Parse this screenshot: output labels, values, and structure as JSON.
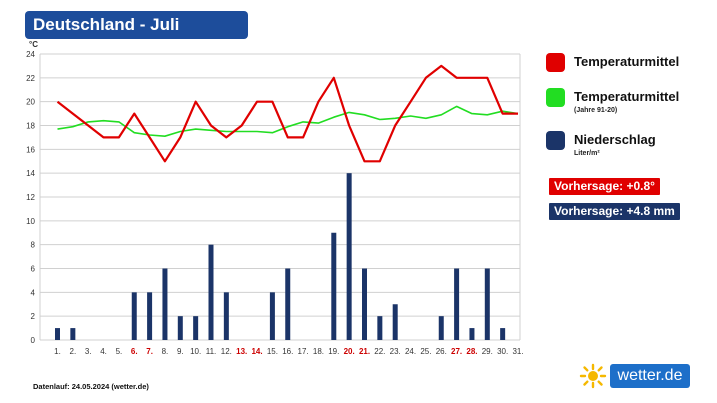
{
  "header": {
    "title": "Deutschland - Juli",
    "unit": "°C"
  },
  "legend": {
    "temp": {
      "label": "Temperaturmittel",
      "color": "#e00000"
    },
    "normal": {
      "label": "Temperaturmittel",
      "sublabel": "(Jahre 91-20)",
      "color": "#22dd22"
    },
    "precip": {
      "label": "Niederschlag",
      "sublabel": "Liter/m²",
      "color": "#1b3468"
    }
  },
  "badges": {
    "temp_forecast": "Vorhersage: +0.8°",
    "precip_forecast": "Vorhersage: +4.8 mm"
  },
  "footer": {
    "text": "Datenlauf: 24.05.2024 (wetter.de)"
  },
  "logo": {
    "text": "wetter.de",
    "icon": "sun-icon"
  },
  "chart_data": {
    "type": "line+bar",
    "ylim": [
      0,
      24
    ],
    "yticks": [
      0,
      2,
      4,
      6,
      8,
      10,
      12,
      14,
      16,
      18,
      20,
      22,
      24
    ],
    "categories": [
      "1.",
      "2.",
      "3.",
      "4.",
      "5.",
      "6.",
      "7.",
      "8.",
      "9.",
      "10.",
      "11.",
      "12.",
      "13.",
      "14.",
      "15.",
      "16.",
      "17.",
      "18.",
      "19.",
      "20.",
      "21.",
      "22.",
      "23.",
      "24.",
      "25.",
      "26.",
      "27.",
      "28.",
      "29.",
      "30.",
      "31."
    ],
    "weekend_days": [
      6,
      7,
      13,
      14,
      20,
      21,
      27,
      28
    ],
    "series": [
      {
        "name": "Temperaturmittel",
        "type": "line",
        "color": "#e00000",
        "values": [
          20,
          19,
          18,
          17,
          17,
          19,
          17,
          15,
          17,
          20,
          18,
          17,
          18,
          20,
          20,
          17,
          17,
          20,
          22,
          18,
          15,
          15,
          18,
          20,
          22,
          23,
          22,
          22,
          22,
          19,
          19
        ]
      },
      {
        "name": "Temperaturmittel (Jahre 91-20)",
        "type": "line",
        "color": "#22dd22",
        "values": [
          17.7,
          17.9,
          18.3,
          18.4,
          18.3,
          17.4,
          17.2,
          17.1,
          17.5,
          17.7,
          17.6,
          17.5,
          17.5,
          17.5,
          17.4,
          17.9,
          18.3,
          18.2,
          18.7,
          19.1,
          18.9,
          18.5,
          18.6,
          18.8,
          18.6,
          18.9,
          19.6,
          19.0,
          18.9,
          19.2,
          19.0
        ]
      },
      {
        "name": "Niederschlag",
        "type": "bar",
        "color": "#1b3468",
        "values": [
          1,
          1,
          0,
          0,
          0,
          4,
          4,
          6,
          2,
          2,
          8,
          4,
          0,
          0,
          4,
          6,
          0,
          0,
          9,
          14,
          6,
          2,
          3,
          0,
          0,
          2,
          6,
          1,
          6,
          1,
          0
        ]
      }
    ]
  }
}
